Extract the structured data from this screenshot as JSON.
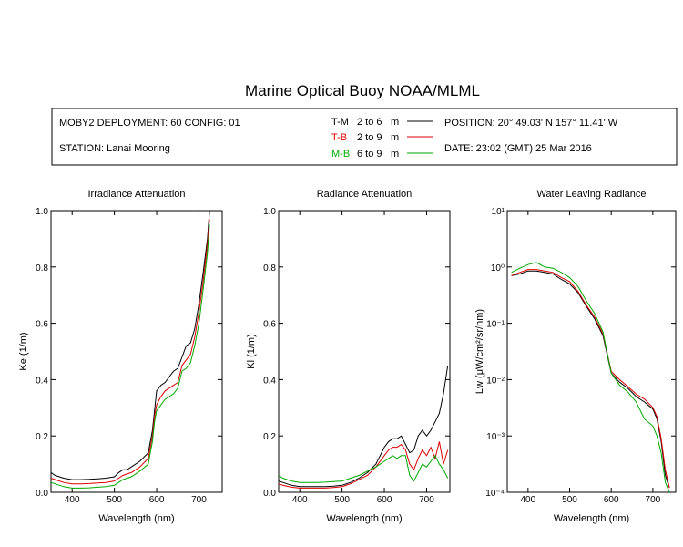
{
  "title": "Marine Optical Buoy NOAA/MLML",
  "info": {
    "deployment": "MOBY2 DEPLOYMENT: 60 CONFIG: 01",
    "station": "STATION: Lanai Mooring",
    "position": "POSITION: 20° 49.03' N   157° 11.41' W",
    "date": "DATE: 23:02 (GMT) 25 Mar 2016"
  },
  "legend": [
    {
      "tag": "T-M",
      "range": "2 to 6",
      "unit": "m",
      "color": "#000000"
    },
    {
      "tag": "T-B",
      "range": "2 to 9",
      "unit": "m",
      "color": "#dd0000"
    },
    {
      "tag": "M-B",
      "range": "6 to 9",
      "unit": "m",
      "color": "#00aa00"
    }
  ],
  "chart_data": [
    {
      "type": "line",
      "title": "Irradiance Attenuation",
      "xlabel": "Wavelength (nm)",
      "ylabel": "Ke  (1/m)",
      "xlim": [
        350,
        755
      ],
      "ylim": [
        0,
        1.0
      ],
      "xticks": [
        "400",
        "500",
        "600",
        "700"
      ],
      "yticks": [
        "0.0",
        "0.2",
        "0.4",
        "0.6",
        "0.8",
        "1.0"
      ],
      "x": [
        350,
        360,
        380,
        400,
        420,
        440,
        460,
        480,
        500,
        510,
        520,
        530,
        540,
        560,
        580,
        590,
        595,
        600,
        610,
        620,
        640,
        650,
        660,
        670,
        680,
        690,
        700,
        710,
        720,
        725
      ],
      "series": [
        {
          "name": "T-M",
          "color": "#000000",
          "values": [
            0.07,
            0.06,
            0.05,
            0.045,
            0.045,
            0.046,
            0.048,
            0.05,
            0.055,
            0.07,
            0.08,
            0.08,
            0.09,
            0.11,
            0.14,
            0.22,
            0.29,
            0.36,
            0.38,
            0.39,
            0.43,
            0.44,
            0.48,
            0.52,
            0.53,
            0.58,
            0.67,
            0.78,
            0.9,
            1.0
          ]
        },
        {
          "name": "T-B",
          "color": "#dd0000",
          "values": [
            0.05,
            0.045,
            0.035,
            0.03,
            0.03,
            0.031,
            0.033,
            0.035,
            0.04,
            0.05,
            0.06,
            0.065,
            0.07,
            0.09,
            0.12,
            0.2,
            0.27,
            0.31,
            0.34,
            0.36,
            0.38,
            0.39,
            0.45,
            0.47,
            0.49,
            0.55,
            0.64,
            0.75,
            0.88,
            0.97
          ]
        },
        {
          "name": "M-B",
          "color": "#00aa00",
          "values": [
            0.035,
            0.03,
            0.02,
            0.015,
            0.015,
            0.016,
            0.018,
            0.02,
            0.025,
            0.035,
            0.045,
            0.05,
            0.055,
            0.075,
            0.1,
            0.18,
            0.25,
            0.29,
            0.31,
            0.33,
            0.35,
            0.37,
            0.43,
            0.44,
            0.46,
            0.52,
            0.6,
            0.72,
            0.85,
            0.95
          ]
        }
      ]
    },
    {
      "type": "line",
      "title": "Radiance Attenuation",
      "xlabel": "Wavelength (nm)",
      "ylabel": "Kl  (1/m)",
      "xlim": [
        350,
        755
      ],
      "ylim": [
        0,
        1.0
      ],
      "xticks": [
        "400",
        "500",
        "600",
        "700"
      ],
      "yticks": [
        "0.0",
        "0.2",
        "0.4",
        "0.6",
        "0.8",
        "1.0"
      ],
      "x": [
        350,
        360,
        380,
        400,
        420,
        440,
        460,
        480,
        500,
        520,
        540,
        560,
        580,
        600,
        610,
        620,
        630,
        640,
        650,
        660,
        670,
        680,
        690,
        700,
        710,
        720,
        730,
        740,
        750
      ],
      "series": [
        {
          "name": "T-M",
          "color": "#000000",
          "values": [
            0.04,
            0.035,
            0.025,
            0.02,
            0.02,
            0.02,
            0.02,
            0.022,
            0.025,
            0.035,
            0.05,
            0.07,
            0.1,
            0.16,
            0.18,
            0.19,
            0.19,
            0.2,
            0.17,
            0.14,
            0.15,
            0.2,
            0.22,
            0.2,
            0.22,
            0.25,
            0.28,
            0.35,
            0.45
          ]
        },
        {
          "name": "T-B",
          "color": "#dd0000",
          "values": [
            0.03,
            0.025,
            0.018,
            0.015,
            0.015,
            0.015,
            0.015,
            0.017,
            0.02,
            0.03,
            0.045,
            0.06,
            0.09,
            0.13,
            0.15,
            0.16,
            0.16,
            0.17,
            0.15,
            0.1,
            0.08,
            0.12,
            0.15,
            0.13,
            0.16,
            0.12,
            0.18,
            0.1,
            0.15
          ]
        },
        {
          "name": "M-B",
          "color": "#00aa00",
          "values": [
            0.06,
            0.05,
            0.04,
            0.035,
            0.035,
            0.035,
            0.036,
            0.038,
            0.04,
            0.05,
            0.06,
            0.075,
            0.09,
            0.11,
            0.12,
            0.13,
            0.12,
            0.13,
            0.13,
            0.06,
            0.04,
            0.07,
            0.1,
            0.09,
            0.11,
            0.13,
            0.1,
            0.08,
            0.05
          ]
        }
      ]
    },
    {
      "type": "line",
      "title": "Water Leaving Radiance",
      "xlabel": "Wavelength (nm)",
      "ylabel": "Lw  (μW/cm²/sr/nm)",
      "scale": "log",
      "xlim": [
        350,
        755
      ],
      "ylim": [
        0.0001,
        10
      ],
      "xticks": [
        "400",
        "500",
        "600",
        "700"
      ],
      "yticks": [
        "10⁻⁴",
        "10⁻³",
        "10⁻²",
        "10⁻¹",
        "10⁰",
        "10¹"
      ],
      "x": [
        360,
        380,
        400,
        420,
        440,
        460,
        480,
        500,
        520,
        540,
        560,
        580,
        600,
        620,
        640,
        660,
        680,
        700,
        710,
        720,
        730,
        740
      ],
      "series": [
        {
          "name": "T-M",
          "color": "#000000",
          "values": [
            0.7,
            0.75,
            0.85,
            0.85,
            0.8,
            0.75,
            0.6,
            0.5,
            0.35,
            0.2,
            0.12,
            0.06,
            0.013,
            0.009,
            0.007,
            0.005,
            0.004,
            0.003,
            0.002,
            0.0008,
            0.0002,
            0.00012
          ]
        },
        {
          "name": "T-B",
          "color": "#dd0000",
          "values": [
            0.7,
            0.8,
            0.9,
            0.9,
            0.85,
            0.8,
            0.65,
            0.55,
            0.37,
            0.21,
            0.13,
            0.065,
            0.014,
            0.01,
            0.0075,
            0.0055,
            0.0045,
            0.0032,
            0.0022,
            0.0009,
            0.00025,
            0.00012
          ]
        },
        {
          "name": "M-B",
          "color": "#00aa00",
          "values": [
            0.8,
            0.95,
            1.1,
            1.2,
            1.0,
            0.95,
            0.8,
            0.65,
            0.45,
            0.25,
            0.15,
            0.07,
            0.013,
            0.008,
            0.006,
            0.004,
            0.002,
            0.0015,
            0.001,
            0.0005,
            0.00015,
            0.0001
          ]
        }
      ]
    }
  ]
}
